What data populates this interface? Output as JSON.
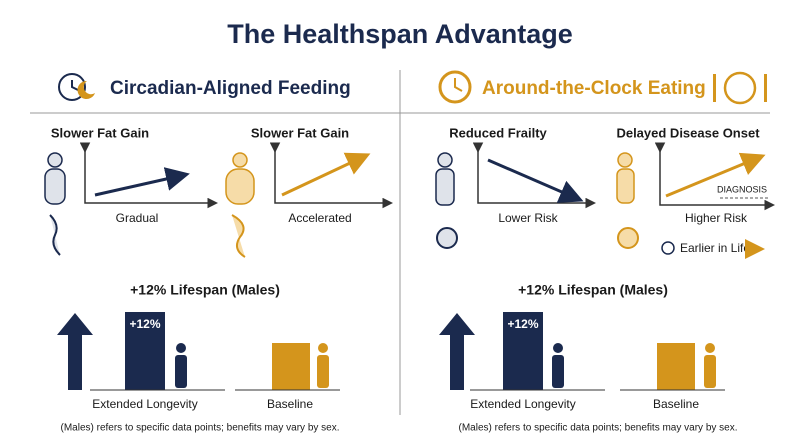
{
  "title": "The Healthspan Advantage",
  "panels": [
    {
      "heading": "Circadian-Aligned Feeding",
      "items": [
        {
          "title": "Slower Fat Gain",
          "label": "Gradual"
        },
        {
          "title": "Slower Fat Gain",
          "label": "Accelerated"
        }
      ],
      "lifespan_title": "+12% Lifespan (Males)",
      "bar_label": "+12%",
      "left_label": "Extended Longevity",
      "right_label": "Baseline",
      "footnote": "(Males) refers to specific data points; benefits may vary by sex."
    },
    {
      "heading": "Around-the-Clock Eating",
      "items": [
        {
          "title": "Reduced Frailty",
          "label": "Lower Risk"
        },
        {
          "title": "Delayed Disease Onset",
          "label": "Higher Risk",
          "annotation": "DIAGNOSIS"
        }
      ],
      "note": "Earlier in Life",
      "lifespan_title": "+12% Lifespan (Males)",
      "bar_label": "+12%",
      "left_label": "Extended Longevity",
      "right_label": "Baseline",
      "footnote": "(Males) refers to specific data points; benefits may vary by sex."
    }
  ]
}
